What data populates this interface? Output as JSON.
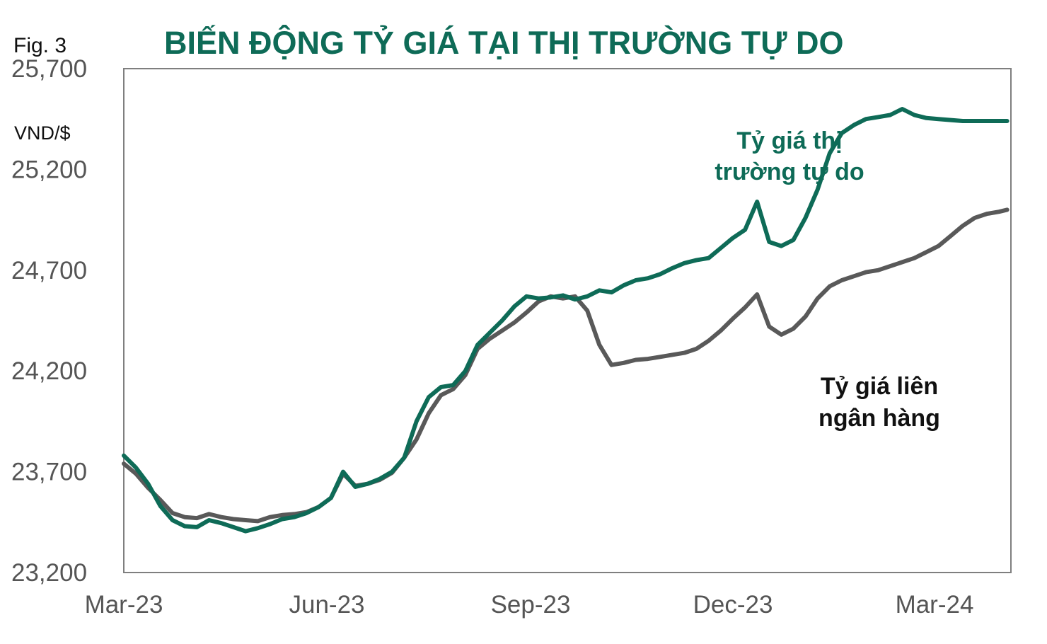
{
  "figure_label": "Fig. 3",
  "chart_data": {
    "type": "line",
    "title": "BIẾN ĐỘNG TỶ GIÁ TẠI THỊ TRƯỜNG TỰ DO",
    "ylabel": "VND/$",
    "xlabel": "",
    "ylim": [
      23200,
      25700
    ],
    "yticks": [
      "25,700",
      "25,200",
      "24,700",
      "24,200",
      "23,700",
      "23,200"
    ],
    "xticks": [
      "Mar-23",
      "Jun-23",
      "Sep-23",
      "Dec-23",
      "Mar-24"
    ],
    "grid": false,
    "colors": {
      "free_market": "#0e6b57",
      "interbank": "#595959",
      "title": "#0e6b57"
    },
    "annotations": {
      "free_market": [
        "Tỷ giá thị",
        "trường tự do"
      ],
      "interbank": [
        "Tỷ giá liên",
        "ngân hàng"
      ]
    },
    "series": [
      {
        "name": "Tỷ giá thị trường tự do",
        "x": [
          0,
          0.06,
          0.12,
          0.18,
          0.24,
          0.3,
          0.36,
          0.42,
          0.48,
          0.54,
          0.6,
          0.66,
          0.72,
          0.78,
          0.84,
          0.9,
          0.96,
          1.02,
          1.08,
          1.14,
          1.2,
          1.26,
          1.32,
          1.38,
          1.44,
          1.5,
          1.56,
          1.62,
          1.68,
          1.74,
          1.8,
          1.86,
          1.92,
          1.98,
          2.04,
          2.1,
          2.16,
          2.22,
          2.28,
          2.34,
          2.4,
          2.46,
          2.52,
          2.58,
          2.64,
          2.7,
          2.76,
          2.82,
          2.88,
          2.94,
          3.0,
          3.06,
          3.12,
          3.18,
          3.24,
          3.3,
          3.36,
          3.42,
          3.48,
          3.54,
          3.6,
          3.66,
          3.72,
          3.78,
          3.84,
          3.9,
          3.96,
          4.02,
          4.08,
          4.14,
          4.2,
          4.26,
          4.32,
          4.36
        ],
        "values": [
          23780,
          23720,
          23640,
          23530,
          23460,
          23430,
          23425,
          23460,
          23445,
          23425,
          23405,
          23420,
          23440,
          23465,
          23475,
          23495,
          23525,
          23570,
          23700,
          23625,
          23640,
          23665,
          23700,
          23770,
          23950,
          24070,
          24120,
          24130,
          24200,
          24330,
          24390,
          24450,
          24520,
          24570,
          24560,
          24565,
          24575,
          24555,
          24570,
          24600,
          24590,
          24625,
          24650,
          24660,
          24680,
          24710,
          24735,
          24750,
          24760,
          24810,
          24860,
          24900,
          25040,
          24840,
          24820,
          24850,
          24960,
          25100,
          25280,
          25380,
          25420,
          25450,
          25460,
          25470,
          25500,
          25470,
          25455,
          25450,
          25445,
          25440,
          25440,
          25440,
          25440,
          25440
        ]
      },
      {
        "name": "Tỷ giá liên ngân hàng",
        "x": [
          0,
          0.06,
          0.12,
          0.18,
          0.24,
          0.3,
          0.36,
          0.42,
          0.48,
          0.54,
          0.6,
          0.66,
          0.72,
          0.78,
          0.84,
          0.9,
          0.96,
          1.02,
          1.08,
          1.14,
          1.2,
          1.26,
          1.32,
          1.38,
          1.44,
          1.5,
          1.56,
          1.62,
          1.68,
          1.74,
          1.8,
          1.86,
          1.92,
          1.98,
          2.04,
          2.1,
          2.16,
          2.22,
          2.28,
          2.34,
          2.4,
          2.46,
          2.52,
          2.58,
          2.64,
          2.7,
          2.76,
          2.82,
          2.88,
          2.94,
          3.0,
          3.06,
          3.12,
          3.18,
          3.24,
          3.3,
          3.36,
          3.42,
          3.48,
          3.54,
          3.6,
          3.66,
          3.72,
          3.78,
          3.84,
          3.9,
          3.96,
          4.02,
          4.08,
          4.14,
          4.2,
          4.26,
          4.32,
          4.36
        ],
        "values": [
          23740,
          23690,
          23620,
          23560,
          23495,
          23475,
          23470,
          23490,
          23475,
          23465,
          23460,
          23455,
          23475,
          23485,
          23490,
          23500,
          23525,
          23570,
          23690,
          23630,
          23640,
          23660,
          23695,
          23770,
          23860,
          23990,
          24080,
          24110,
          24180,
          24310,
          24360,
          24400,
          24440,
          24490,
          24545,
          24570,
          24560,
          24570,
          24500,
          24330,
          24230,
          24240,
          24255,
          24260,
          24270,
          24280,
          24290,
          24310,
          24350,
          24400,
          24460,
          24515,
          24580,
          24420,
          24380,
          24410,
          24470,
          24560,
          24620,
          24650,
          24670,
          24690,
          24700,
          24720,
          24740,
          24760,
          24790,
          24820,
          24870,
          24920,
          24960,
          24980,
          24990,
          25000
        ]
      }
    ]
  }
}
